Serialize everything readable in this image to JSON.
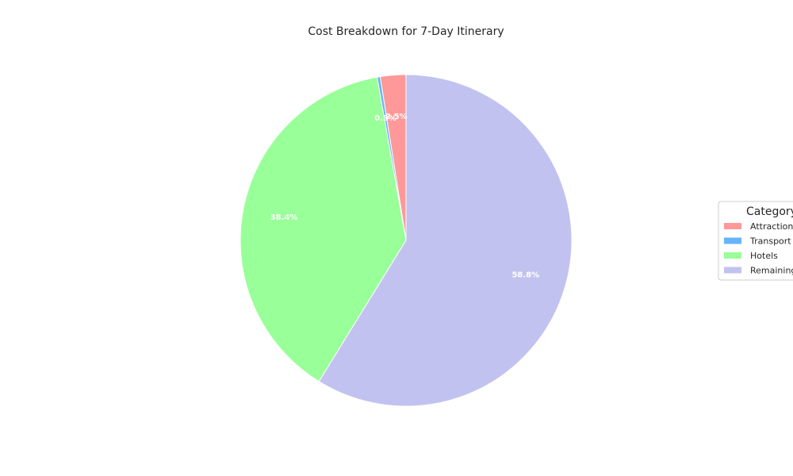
{
  "chart_data": {
    "type": "pie",
    "title": "Cost Breakdown for 7-Day Itinerary",
    "categories": [
      "Attractions",
      "Transport",
      "Hotels",
      "Remaining"
    ],
    "values": [
      2.5,
      0.3,
      38.4,
      58.8
    ],
    "value_labels": [
      "2.5%",
      "0.3%",
      "38.4%",
      "58.8%"
    ],
    "colors": [
      "#ff9999",
      "#66b3ff",
      "#99ff99",
      "#c2c2f0"
    ],
    "start_angle_deg": 90,
    "direction": "counterclockwise",
    "legend": {
      "title": "Category",
      "placement": "right"
    }
  }
}
